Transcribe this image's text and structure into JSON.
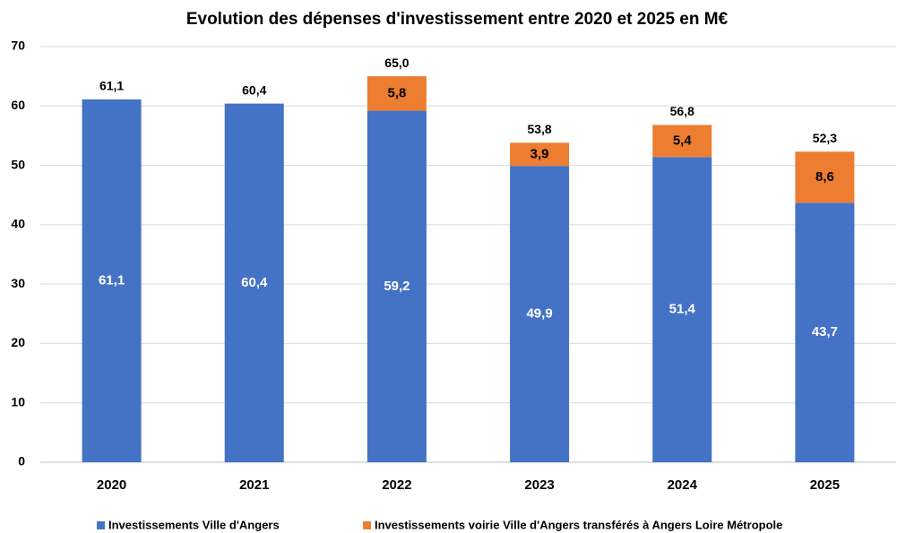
{
  "chart_data": {
    "type": "stacked_bar",
    "title": "Evolution des dépenses d'investissement entre 2020 et 2025 en M€",
    "categories": [
      "2020",
      "2021",
      "2022",
      "2023",
      "2024",
      "2025"
    ],
    "series": [
      {
        "name": "Investissements Ville d'Angers",
        "color": "#4472c4",
        "values": [
          61.1,
          60.4,
          59.2,
          49.9,
          51.4,
          43.7
        ],
        "value_labels": [
          "61,1",
          "60,4",
          "59,2",
          "49,9",
          "51,4",
          "43,7"
        ]
      },
      {
        "name": "Investissements voirie Ville d'Angers transférés à Angers Loire Métropole",
        "color": "#ed7d31",
        "values": [
          null,
          null,
          5.8,
          3.9,
          5.4,
          8.6
        ],
        "value_labels": [
          null,
          null,
          "5,8",
          "3,9",
          "5,4",
          "8,6"
        ]
      }
    ],
    "totals": {
      "values": [
        61.1,
        60.4,
        65.0,
        53.8,
        56.8,
        52.3
      ],
      "value_labels": [
        "61,1",
        "60,4",
        "65,0",
        "53,8",
        "56,8",
        "52,3"
      ]
    },
    "ylim": [
      0,
      70
    ],
    "yticks": [
      0,
      10,
      20,
      30,
      40,
      50,
      60,
      70
    ],
    "grid": true,
    "legend": "bottom"
  }
}
